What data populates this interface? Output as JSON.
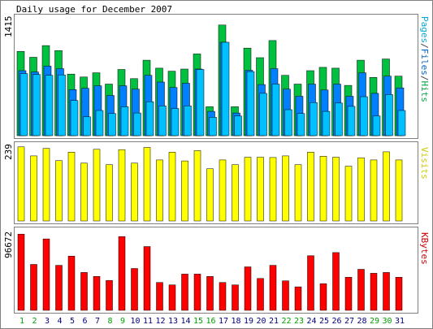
{
  "title": "Daily usage for December 2007",
  "y_label_top": "1415",
  "y_label_mid": "239",
  "y_label_bot": "96672",
  "side_legend_top": [
    {
      "text": "Pages",
      "color": "#00aadd"
    },
    {
      "text": "/",
      "color": "#444444"
    },
    {
      "text": "Files",
      "color": "#0066cc"
    },
    {
      "text": "/",
      "color": "#444444"
    },
    {
      "text": "Hits",
      "color": "#00aa44"
    }
  ],
  "side_legend_mid": "Visits",
  "side_legend_bot": "KBytes",
  "colors": {
    "hits": "#00c040",
    "files": "#0080ff",
    "pages": "#00c0ff",
    "visits": "#ffff00",
    "kbytes": "#ff0000",
    "weekend_label": "#00a000",
    "weekday_label": "#000080",
    "panel_bg": "#ffffff",
    "frame": "#808080"
  },
  "chart_data": [
    {
      "type": "bar",
      "panel": "hits_files_pages",
      "ymax_label": "1415",
      "ylim": [
        0,
        1415
      ],
      "categories": [
        "1",
        "2",
        "3",
        "4",
        "5",
        "6",
        "7",
        "8",
        "9",
        "10",
        "11",
        "12",
        "13",
        "14",
        "15",
        "16",
        "17",
        "18",
        "19",
        "20",
        "21",
        "22",
        "23",
        "24",
        "25",
        "26",
        "27",
        "28",
        "29",
        "30",
        "31"
      ],
      "series": [
        {
          "name": "Hits",
          "values": [
            1005,
            935,
            1075,
            1015,
            735,
            700,
            750,
            615,
            790,
            680,
            900,
            805,
            770,
            795,
            975,
            345,
            1320,
            345,
            1045,
            930,
            1135,
            720,
            615,
            775,
            815,
            805,
            600,
            900,
            695,
            915,
            710
          ]
        },
        {
          "name": "Files",
          "values": [
            775,
            760,
            830,
            800,
            550,
            565,
            595,
            480,
            595,
            555,
            720,
            640,
            575,
            625,
            795,
            290,
            1115,
            270,
            780,
            610,
            800,
            555,
            470,
            615,
            545,
            615,
            470,
            750,
            505,
            710,
            570
          ]
        },
        {
          "name": "Pages",
          "values": [
            740,
            730,
            720,
            725,
            420,
            225,
            300,
            265,
            345,
            270,
            405,
            355,
            325,
            355,
            790,
            220,
            1115,
            235,
            765,
            505,
            615,
            310,
            265,
            395,
            290,
            390,
            350,
            465,
            235,
            490,
            300
          ]
        }
      ]
    },
    {
      "type": "bar",
      "panel": "visits",
      "ymax_label": "239",
      "ylim": [
        0,
        239
      ],
      "categories": [
        "1",
        "2",
        "3",
        "4",
        "5",
        "6",
        "7",
        "8",
        "9",
        "10",
        "11",
        "12",
        "13",
        "14",
        "15",
        "16",
        "17",
        "18",
        "19",
        "20",
        "21",
        "22",
        "23",
        "24",
        "25",
        "26",
        "27",
        "28",
        "29",
        "30",
        "31"
      ],
      "series": [
        {
          "name": "Visits",
          "values": [
            237,
            208,
            232,
            193,
            220,
            185,
            229,
            180,
            228,
            185,
            235,
            195,
            220,
            192,
            225,
            167,
            195,
            180,
            204,
            204,
            203,
            208,
            180,
            220,
            207,
            204,
            175,
            202,
            195,
            221,
            195
          ]
        }
      ]
    },
    {
      "type": "bar",
      "panel": "kbytes",
      "ymax_label": "96672",
      "ylim": [
        0,
        96672
      ],
      "categories": [
        "1",
        "2",
        "3",
        "4",
        "5",
        "6",
        "7",
        "8",
        "9",
        "10",
        "11",
        "12",
        "13",
        "14",
        "15",
        "16",
        "17",
        "18",
        "19",
        "20",
        "21",
        "22",
        "23",
        "24",
        "25",
        "26",
        "27",
        "28",
        "29",
        "30",
        "31"
      ],
      "series": [
        {
          "name": "KBytes",
          "values": [
            95500,
            57500,
            89400,
            56400,
            67900,
            47400,
            42400,
            37400,
            92400,
            52400,
            79900,
            34900,
            31900,
            45400,
            45400,
            42400,
            34900,
            31900,
            54400,
            39900,
            56400,
            36900,
            29400,
            68400,
            33400,
            72400,
            41400,
            51400,
            46400,
            47400,
            41400
          ]
        }
      ]
    }
  ],
  "weekend_days": [
    1,
    2,
    8,
    9,
    15,
    16,
    22,
    23,
    29,
    30
  ]
}
